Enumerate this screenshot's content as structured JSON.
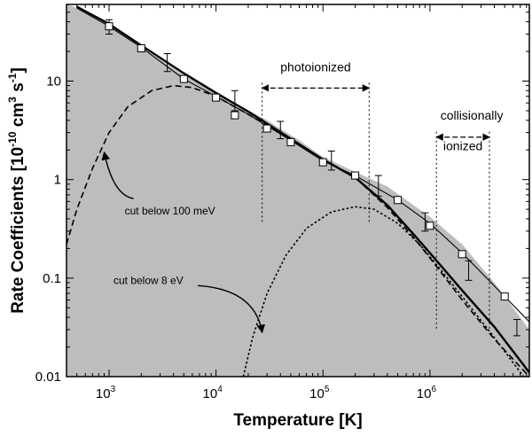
{
  "chart_data": {
    "type": "line",
    "xlabel": "Temperature [K]",
    "ylabel_parts": [
      "Rate Coefficients [10",
      "-10",
      " cm",
      "3",
      " s",
      "-1",
      "]"
    ],
    "x_scale": "log",
    "y_scale": "log",
    "xlim": [
      400,
      8500000
    ],
    "ylim": [
      0.01,
      60
    ],
    "x_ticks": [
      {
        "value": 1000,
        "base": "10",
        "exp": "3"
      },
      {
        "value": 10000,
        "base": "10",
        "exp": "4"
      },
      {
        "value": 100000,
        "base": "10",
        "exp": "5"
      },
      {
        "value": 1000000,
        "base": "10",
        "exp": "6"
      }
    ],
    "y_ticks": [
      {
        "value": 0.01,
        "label": "0.01"
      },
      {
        "value": 0.1,
        "label": "0.1"
      },
      {
        "value": 1,
        "label": "1"
      },
      {
        "value": 10,
        "label": "10"
      }
    ],
    "shaded_band": {
      "upper": [
        [
          400,
          60
        ],
        [
          600,
          52
        ],
        [
          1000,
          40
        ],
        [
          2000,
          22
        ],
        [
          5000,
          11.5
        ],
        [
          10000,
          7.6
        ],
        [
          30000,
          4.0
        ],
        [
          60000,
          2.5
        ],
        [
          100000,
          1.7
        ],
        [
          200000,
          1.2
        ],
        [
          400000,
          0.85
        ],
        [
          1000000,
          0.42
        ],
        [
          2000000,
          0.22
        ],
        [
          4000000,
          0.09
        ],
        [
          8500000,
          0.03
        ]
      ],
      "lower_edge": 0.01
    },
    "series": [
      {
        "style": "thin-solid",
        "points": [
          [
            500,
            55
          ],
          [
            1000,
            36
          ],
          [
            2000,
            22
          ],
          [
            5000,
            10.5
          ],
          [
            10000,
            7.0
          ],
          [
            20000,
            4.6
          ],
          [
            50000,
            2.5
          ],
          [
            100000,
            1.55
          ],
          [
            200000,
            1.1
          ],
          [
            500000,
            0.62
          ],
          [
            1000000,
            0.36
          ],
          [
            2000000,
            0.18
          ],
          [
            5000000,
            0.065
          ],
          [
            8500000,
            0.036
          ]
        ]
      },
      {
        "style": "thick-solid",
        "points": [
          [
            500,
            57
          ],
          [
            1000,
            38
          ],
          [
            2000,
            23
          ],
          [
            5000,
            12
          ],
          [
            10000,
            7.6
          ],
          [
            20000,
            4.9
          ],
          [
            50000,
            2.6
          ],
          [
            100000,
            1.6
          ],
          [
            200000,
            1.05
          ],
          [
            400000,
            0.55
          ],
          [
            700000,
            0.28
          ],
          [
            1000000,
            0.18
          ],
          [
            2000000,
            0.075
          ],
          [
            4000000,
            0.032
          ],
          [
            8500000,
            0.011
          ]
        ]
      },
      {
        "style": "dashed",
        "points": [
          [
            400,
            0.22
          ],
          [
            500,
            0.5
          ],
          [
            700,
            1.3
          ],
          [
            1000,
            3.0
          ],
          [
            1500,
            5.5
          ],
          [
            2500,
            8.0
          ],
          [
            4000,
            9.0
          ],
          [
            6000,
            8.6
          ],
          [
            10000,
            7.0
          ],
          [
            20000,
            4.6
          ],
          [
            50000,
            2.6
          ],
          [
            100000,
            1.6
          ],
          [
            200000,
            1.05
          ],
          [
            400000,
            0.52
          ],
          [
            700000,
            0.26
          ],
          [
            1000000,
            0.16
          ],
          [
            2000000,
            0.06
          ],
          [
            4000000,
            0.024
          ],
          [
            8500000,
            0.01
          ]
        ]
      },
      {
        "style": "dotted",
        "points": [
          [
            18000,
            0.01
          ],
          [
            22000,
            0.025
          ],
          [
            30000,
            0.07
          ],
          [
            45000,
            0.17
          ],
          [
            70000,
            0.32
          ],
          [
            120000,
            0.47
          ],
          [
            200000,
            0.53
          ],
          [
            300000,
            0.5
          ],
          [
            500000,
            0.36
          ],
          [
            800000,
            0.22
          ],
          [
            1200000,
            0.13
          ],
          [
            2000000,
            0.065
          ],
          [
            4000000,
            0.025
          ],
          [
            7500000,
            0.01
          ]
        ]
      }
    ],
    "markers": [
      {
        "x": 1000,
        "y": 36
      },
      {
        "x": 2000,
        "y": 21.5
      },
      {
        "x": 5000,
        "y": 10.5
      },
      {
        "x": 10000,
        "y": 6.8
      },
      {
        "x": 15000,
        "y": 4.5
      },
      {
        "x": 30000,
        "y": 3.3
      },
      {
        "x": 50000,
        "y": 2.4
      },
      {
        "x": 100000,
        "y": 1.5
      },
      {
        "x": 200000,
        "y": 1.1
      },
      {
        "x": 500000,
        "y": 0.62
      },
      {
        "x": 1000000,
        "y": 0.34
      },
      {
        "x": 2000000,
        "y": 0.175
      },
      {
        "x": 5000000,
        "y": 0.065
      }
    ],
    "error_bars": [
      {
        "x": 1000,
        "y": 36,
        "lo": 30,
        "hi": 42
      },
      {
        "x": 3500,
        "y": 15.5,
        "lo": 12.5,
        "hi": 19
      },
      {
        "x": 15000,
        "y": 6.3,
        "lo": 5.0,
        "hi": 8.0
      },
      {
        "x": 40000,
        "y": 3.2,
        "lo": 2.6,
        "hi": 3.9
      },
      {
        "x": 120000,
        "y": 1.55,
        "lo": 1.25,
        "hi": 1.95
      },
      {
        "x": 330000,
        "y": 0.85,
        "lo": 0.68,
        "hi": 1.1
      },
      {
        "x": 900000,
        "y": 0.37,
        "lo": 0.3,
        "hi": 0.46
      },
      {
        "x": 2300000,
        "y": 0.12,
        "lo": 0.095,
        "hi": 0.15
      },
      {
        "x": 6500000,
        "y": 0.031,
        "lo": 0.026,
        "hi": 0.038
      }
    ],
    "annotations": {
      "photoionized": {
        "label": "photoionized",
        "x_from": 27000,
        "x_to": 270000,
        "arrow_y": 8.5,
        "label_y": 14,
        "line_bottom": 0.37
      },
      "collisionally": {
        "label_lines": [
          "collisionally",
          "ionized"
        ],
        "x_from": 1150000,
        "x_to": 3600000,
        "arrow_y": 2.7,
        "label_y1": 4.5,
        "label_y2": 2.2,
        "line_bottom": 0.03
      },
      "cut_100meV": {
        "label": "cut below 100 meV",
        "label_x": 1400,
        "label_y": 0.48,
        "arrow_to_x": 900,
        "arrow_to_y": 1.9
      },
      "cut_8eV": {
        "label": "cut below 8 eV",
        "label_x": 1100,
        "label_y": 0.095,
        "arrow_to_x": 27000,
        "arrow_to_y": 0.028
      }
    }
  }
}
